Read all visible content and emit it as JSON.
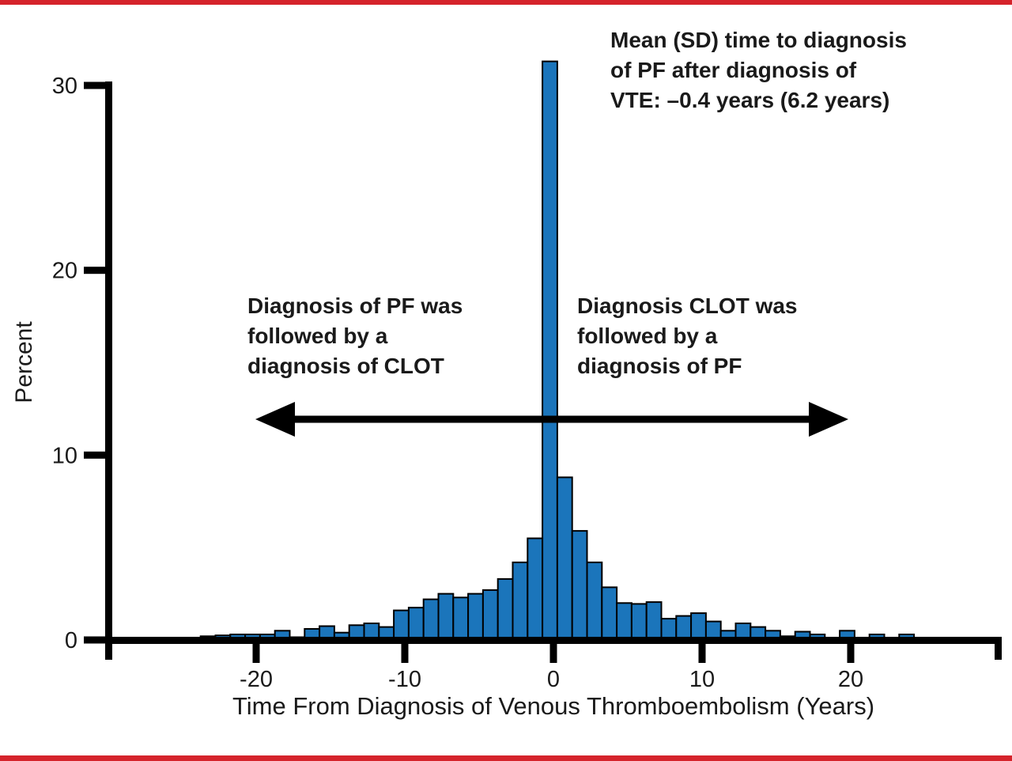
{
  "page": {
    "border_color": "#d5232b",
    "background_color": "#ffffff",
    "text_color": "#1a1a1a"
  },
  "chart_data": {
    "type": "bar",
    "subtype": "histogram",
    "title": "",
    "xlabel": "Time From Diagnosis of Venous Thromboembolism (Years)",
    "ylabel": "Percent",
    "x_ticks": [
      -20,
      -10,
      0,
      10,
      20
    ],
    "y_ticks": [
      0,
      10,
      20,
      30
    ],
    "xlim": [
      -25,
      30
    ],
    "ylim": [
      0,
      31.5
    ],
    "grid": "off",
    "legend": "none",
    "bar_color": "#1b75bb",
    "bar_outline_color": "#000000",
    "bin_width_years": 1,
    "x": [
      -23,
      -22,
      -21,
      -20,
      -19,
      -18,
      -17,
      -16,
      -15,
      -14,
      -13,
      -12,
      -11,
      -10,
      -9,
      -8,
      -7,
      -6,
      -5,
      -4,
      -3,
      -2,
      -1,
      0,
      1,
      2,
      3,
      4,
      5,
      6,
      7,
      8,
      9,
      10,
      11,
      12,
      13,
      14,
      15,
      16,
      17,
      18,
      19,
      20,
      21,
      22,
      23,
      24
    ],
    "values": [
      0.2,
      0.25,
      0.3,
      0.3,
      0.3,
      0.5,
      0.15,
      0.6,
      0.75,
      0.4,
      0.8,
      0.9,
      0.7,
      1.6,
      1.75,
      2.2,
      2.5,
      2.3,
      2.5,
      2.7,
      3.3,
      4.2,
      5.5,
      31.3,
      8.8,
      5.9,
      4.2,
      2.85,
      2.0,
      1.95,
      2.05,
      1.15,
      1.3,
      1.45,
      1.0,
      0.5,
      0.9,
      0.7,
      0.5,
      0.2,
      0.45,
      0.3,
      0,
      0.5,
      0,
      0.3,
      0,
      0.3
    ],
    "annotations": {
      "mean_sd": [
        "Mean (SD) time to diagnosis",
        "of PF after diagnosis of",
        "VTE: –0.4 years (6.2 years)"
      ],
      "left": [
        "Diagnosis of PF was",
        "followed by a",
        "diagnosis of CLOT"
      ],
      "right": [
        "Diagnosis CLOT was",
        "followed by a",
        "diagnosis of PF"
      ]
    }
  }
}
